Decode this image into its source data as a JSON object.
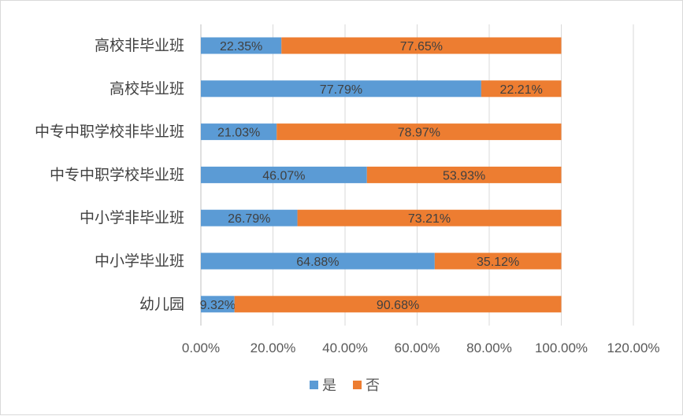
{
  "chart_data": {
    "type": "bar",
    "orientation": "horizontal",
    "stacked": true,
    "categories": [
      "高校非毕业班",
      "高校毕业班",
      "中专中职学校非毕业班",
      "中专中职学校毕业班",
      "中小学非毕业班",
      "中小学毕业班",
      "幼儿园"
    ],
    "series": [
      {
        "name": "是",
        "color": "#5b9bd5",
        "values": [
          22.35,
          77.79,
          21.03,
          46.07,
          26.79,
          64.88,
          9.32
        ],
        "labels": [
          "22.35%",
          "77.79%",
          "21.03%",
          "46.07%",
          "26.79%",
          "64.88%",
          "9.32%"
        ]
      },
      {
        "name": "否",
        "color": "#ed7d31",
        "values": [
          77.65,
          22.21,
          78.97,
          53.93,
          73.21,
          35.12,
          90.68
        ],
        "labels": [
          "77.65%",
          "22.21%",
          "78.97%",
          "53.93%",
          "73.21%",
          "35.12%",
          "90.68%"
        ]
      }
    ],
    "xlim": [
      0,
      120
    ],
    "xticks": [
      "0.00%",
      "20.00%",
      "40.00%",
      "60.00%",
      "80.00%",
      "100.00%",
      "120.00%"
    ],
    "grid": true,
    "legend": "bottom"
  }
}
